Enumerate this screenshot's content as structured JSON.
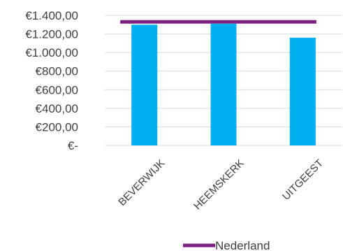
{
  "chart_data": {
    "type": "bar",
    "categories": [
      "BEVERWIJK",
      "HEEMSKERK",
      "UITGEEST"
    ],
    "series": [
      {
        "values": [
          1300,
          1310,
          1160
        ],
        "color": "#00b0f0"
      },
      {
        "name": "Nederland",
        "type": "line",
        "value": 1330,
        "color": "#7b1f82"
      }
    ],
    "y_tick_values": [
      0,
      200,
      400,
      600,
      800,
      1000,
      1200,
      1400
    ],
    "y_tick_labels": [
      "€-",
      "€200,00",
      "€400,00",
      "€600,00",
      "€800,00",
      "€1.000,00",
      "€1.200,00",
      "€1.400,00"
    ],
    "ylim": [
      0,
      1400
    ],
    "grid": true,
    "legend": "bottom"
  }
}
